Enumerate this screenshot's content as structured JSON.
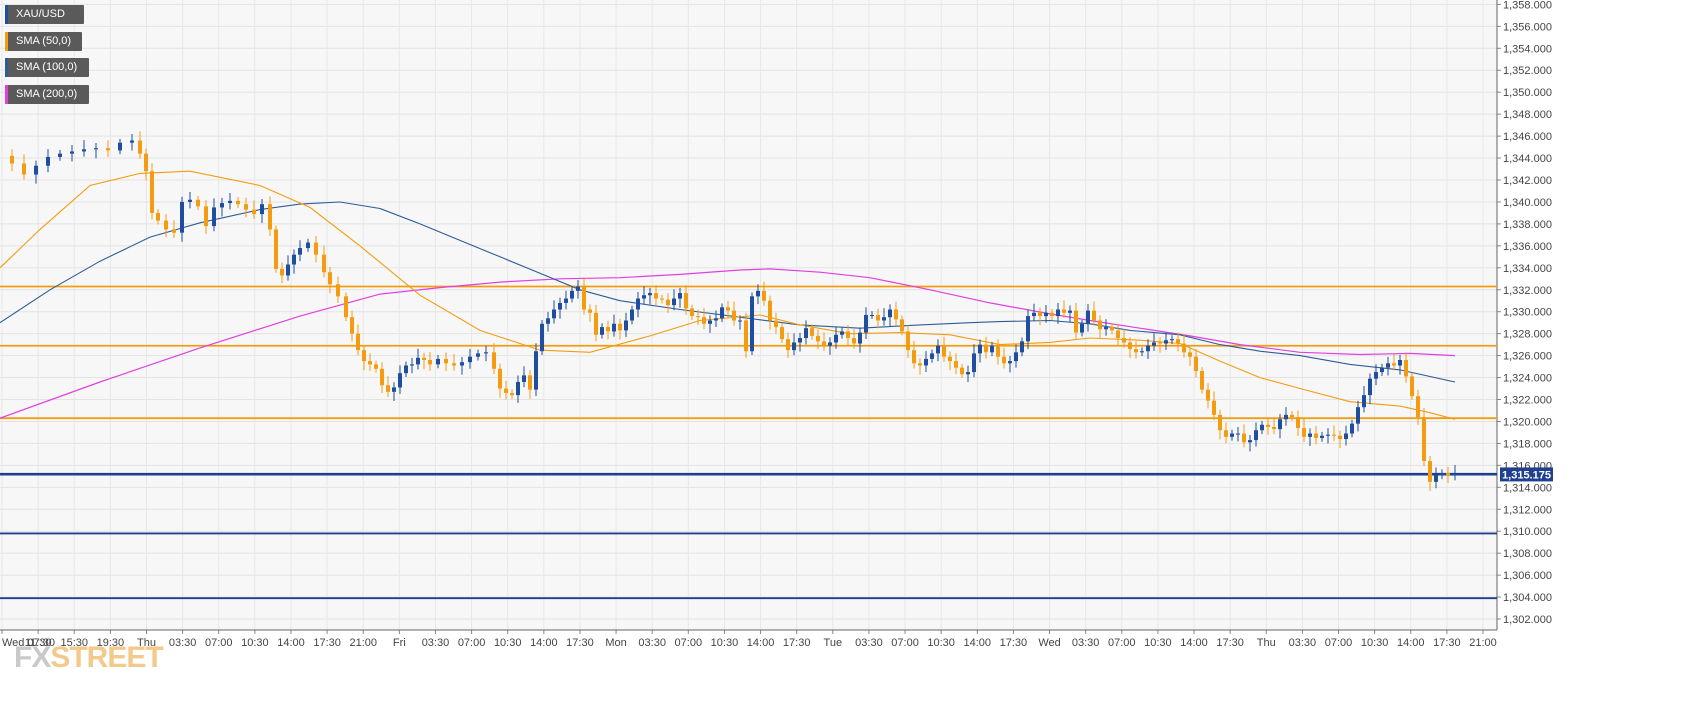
{
  "legend": [
    {
      "label": "XAU/USD",
      "color": "#1f4e9e"
    },
    {
      "label": "SMA (50,0)",
      "color": "#f39c12"
    },
    {
      "label": "SMA (100,0)",
      "color": "#2e5c9a"
    },
    {
      "label": "SMA (200,0)",
      "color": "#e040e0"
    }
  ],
  "logo": {
    "part1": "FX",
    "part2": "STREET"
  },
  "price_badge": "1,315.175",
  "chart_data": {
    "type": "candlestick",
    "symbol": "XAU/USD",
    "ylim": [
      1301,
      1358.4
    ],
    "grid": true,
    "y_ticks": [
      "1,302.000",
      "1,304.000",
      "1,306.000",
      "1,308.000",
      "1,310.000",
      "1,312.000",
      "1,314.000",
      "1,316.000",
      "1,318.000",
      "1,320.000",
      "1,322.000",
      "1,324.000",
      "1,326.000",
      "1,328.000",
      "1,330.000",
      "1,332.000",
      "1,334.000",
      "1,336.000",
      "1,338.000",
      "1,340.000",
      "1,342.000",
      "1,344.000",
      "1,346.000",
      "1,348.000",
      "1,350.000",
      "1,352.000",
      "1,354.000",
      "1,356.000",
      "1,358.000"
    ],
    "x_ticks": [
      "Wed 07:30",
      "11:30",
      "15:30",
      "19:30",
      "Thu",
      "03:30",
      "07:00",
      "10:30",
      "14:00",
      "17:30",
      "21:00",
      "Fri",
      "03:30",
      "07:00",
      "10:30",
      "14:00",
      "17:30",
      "Mon",
      "03:30",
      "07:00",
      "10:30",
      "14:00",
      "17:30",
      "Tue",
      "03:30",
      "07:00",
      "10:30",
      "14:00",
      "17:30",
      "Wed",
      "03:30",
      "07:00",
      "10:30",
      "14:00",
      "17:30",
      "Thu",
      "03:30",
      "07:00",
      "10:30",
      "14:00",
      "17:30",
      "21:00"
    ],
    "horizontal_levels": [
      {
        "price": 1332.3,
        "color": "#f39c12"
      },
      {
        "price": 1326.9,
        "color": "#f39c12"
      },
      {
        "price": 1320.3,
        "color": "#f39c12"
      },
      {
        "price": 1315.2,
        "color": "#1f3f8f"
      },
      {
        "price": 1309.8,
        "color": "#1f3f8f"
      },
      {
        "price": 1303.9,
        "color": "#1f3f8f"
      }
    ],
    "sma_50": [
      [
        0,
        1334
      ],
      [
        40,
        1337.5
      ],
      [
        90,
        1341.5
      ],
      [
        140,
        1342.6
      ],
      [
        190,
        1342.8
      ],
      [
        260,
        1341.5
      ],
      [
        310,
        1339.5
      ],
      [
        360,
        1336
      ],
      [
        420,
        1331.5
      ],
      [
        480,
        1328.3
      ],
      [
        540,
        1326.5
      ],
      [
        590,
        1326.3
      ],
      [
        650,
        1327.8
      ],
      [
        700,
        1329.2
      ],
      [
        760,
        1329.7
      ],
      [
        800,
        1328.8
      ],
      [
        850,
        1328
      ],
      [
        900,
        1328.1
      ],
      [
        950,
        1327.9
      ],
      [
        1000,
        1327
      ],
      [
        1050,
        1327.2
      ],
      [
        1090,
        1327.6
      ],
      [
        1140,
        1327.4
      ],
      [
        1180,
        1327.1
      ],
      [
        1220,
        1325.5
      ],
      [
        1260,
        1324
      ],
      [
        1300,
        1323
      ],
      [
        1350,
        1321.8
      ],
      [
        1400,
        1321.4
      ],
      [
        1430,
        1320.8
      ],
      [
        1455,
        1320.2
      ]
    ],
    "sma_100": [
      [
        0,
        1329
      ],
      [
        50,
        1332
      ],
      [
        100,
        1334.6
      ],
      [
        150,
        1336.8
      ],
      [
        200,
        1338.1
      ],
      [
        260,
        1339.3
      ],
      [
        300,
        1339.8
      ],
      [
        340,
        1340
      ],
      [
        380,
        1339.4
      ],
      [
        420,
        1338
      ],
      [
        460,
        1336.5
      ],
      [
        500,
        1335
      ],
      [
        540,
        1333.5
      ],
      [
        580,
        1332
      ],
      [
        620,
        1331
      ],
      [
        680,
        1330.2
      ],
      [
        740,
        1329.5
      ],
      [
        800,
        1328.8
      ],
      [
        860,
        1328.5
      ],
      [
        920,
        1328.8
      ],
      [
        970,
        1329
      ],
      [
        1000,
        1329.1
      ],
      [
        1050,
        1329.2
      ],
      [
        1090,
        1328.9
      ],
      [
        1130,
        1328.3
      ],
      [
        1180,
        1327.9
      ],
      [
        1220,
        1327
      ],
      [
        1260,
        1326.4
      ],
      [
        1300,
        1326
      ],
      [
        1350,
        1325.2
      ],
      [
        1400,
        1324.7
      ],
      [
        1455,
        1323.6
      ]
    ],
    "sma_200": [
      [
        0,
        1320.3
      ],
      [
        100,
        1323.6
      ],
      [
        200,
        1326.7
      ],
      [
        300,
        1329.6
      ],
      [
        380,
        1331.6
      ],
      [
        440,
        1332.2
      ],
      [
        500,
        1332.7
      ],
      [
        560,
        1333
      ],
      [
        620,
        1333.1
      ],
      [
        680,
        1333.4
      ],
      [
        740,
        1333.8
      ],
      [
        770,
        1333.9
      ],
      [
        820,
        1333.6
      ],
      [
        870,
        1333.1
      ],
      [
        930,
        1332
      ],
      [
        990,
        1330.8
      ],
      [
        1050,
        1329.8
      ],
      [
        1090,
        1329.2
      ],
      [
        1140,
        1328.5
      ],
      [
        1190,
        1327.8
      ],
      [
        1240,
        1327
      ],
      [
        1300,
        1326.3
      ],
      [
        1360,
        1326.1
      ],
      [
        1410,
        1326.2
      ],
      [
        1455,
        1326
      ]
    ],
    "price_path": [
      [
        0,
        1344.2
      ],
      [
        12,
        1343.5
      ],
      [
        24,
        1342.5
      ],
      [
        36,
        1343.3
      ],
      [
        48,
        1344.1
      ],
      [
        60,
        1344.4
      ],
      [
        72,
        1344.6
      ],
      [
        84,
        1344.8
      ],
      [
        96,
        1344.9
      ],
      [
        108,
        1344.7
      ],
      [
        120,
        1345.4
      ],
      [
        132,
        1345.6
      ],
      [
        140,
        1344.4
      ],
      [
        146,
        1342.8
      ],
      [
        152,
        1339
      ],
      [
        158,
        1338.3
      ],
      [
        166,
        1337.5
      ],
      [
        174,
        1337.2
      ],
      [
        182,
        1340
      ],
      [
        190,
        1340.2
      ],
      [
        198,
        1339.6
      ],
      [
        206,
        1337.8
      ],
      [
        214,
        1339.5
      ],
      [
        222,
        1339.9
      ],
      [
        230,
        1340.1
      ],
      [
        238,
        1339.8
      ],
      [
        246,
        1339.3
      ],
      [
        254,
        1338.9
      ],
      [
        262,
        1339.8
      ],
      [
        270,
        1337.5
      ],
      [
        276,
        1333.9
      ],
      [
        282,
        1333.3
      ],
      [
        288,
        1334.3
      ],
      [
        294,
        1335.2
      ],
      [
        300,
        1335.8
      ],
      [
        308,
        1336.3
      ],
      [
        316,
        1335.2
      ],
      [
        324,
        1333.6
      ],
      [
        330,
        1332.5
      ],
      [
        338,
        1331.4
      ],
      [
        346,
        1329.5
      ],
      [
        352,
        1328
      ],
      [
        358,
        1326.5
      ],
      [
        364,
        1325.5
      ],
      [
        370,
        1325.2
      ],
      [
        376,
        1324.8
      ],
      [
        382,
        1323.3
      ],
      [
        388,
        1322.7
      ],
      [
        394,
        1323.1
      ],
      [
        400,
        1324.4
      ],
      [
        406,
        1325.1
      ],
      [
        412,
        1325.2
      ],
      [
        418,
        1325.8
      ],
      [
        424,
        1325.6
      ],
      [
        430,
        1325.2
      ],
      [
        438,
        1325.7
      ],
      [
        446,
        1325.3
      ],
      [
        454,
        1325.1
      ],
      [
        462,
        1325.4
      ],
      [
        470,
        1325.9
      ],
      [
        478,
        1326.2
      ],
      [
        486,
        1326.3
      ],
      [
        494,
        1324.8
      ],
      [
        500,
        1323
      ],
      [
        506,
        1322.6
      ],
      [
        512,
        1322.4
      ],
      [
        518,
        1323.6
      ],
      [
        524,
        1324.2
      ],
      [
        530,
        1322.9
      ],
      [
        536,
        1326.4
      ],
      [
        542,
        1328.9
      ],
      [
        548,
        1329.4
      ],
      [
        554,
        1330.2
      ],
      [
        560,
        1330.8
      ],
      [
        566,
        1331.2
      ],
      [
        572,
        1331.9
      ],
      [
        578,
        1332.3
      ],
      [
        584,
        1330.2
      ],
      [
        590,
        1329.9
      ],
      [
        596,
        1327.9
      ],
      [
        602,
        1328.6
      ],
      [
        608,
        1328.2
      ],
      [
        614,
        1328.9
      ],
      [
        620,
        1328.3
      ],
      [
        626,
        1329.2
      ],
      [
        632,
        1330.2
      ],
      [
        638,
        1331.2
      ],
      [
        644,
        1331.5
      ],
      [
        650,
        1331.7
      ],
      [
        656,
        1331.2
      ],
      [
        662,
        1331.1
      ],
      [
        668,
        1330.6
      ],
      [
        674,
        1331.2
      ],
      [
        680,
        1331.7
      ],
      [
        686,
        1330.3
      ],
      [
        692,
        1329.6
      ],
      [
        698,
        1329.5
      ],
      [
        704,
        1328.9
      ],
      [
        710,
        1329.2
      ],
      [
        716,
        1329.4
      ],
      [
        722,
        1330.4
      ],
      [
        728,
        1330.1
      ],
      [
        734,
        1329.2
      ],
      [
        740,
        1329.2
      ],
      [
        746,
        1326.4
      ],
      [
        752,
        1331.4
      ],
      [
        758,
        1331.9
      ],
      [
        764,
        1331
      ],
      [
        770,
        1329.2
      ],
      [
        776,
        1328.6
      ],
      [
        782,
        1327.5
      ],
      [
        788,
        1326.5
      ],
      [
        794,
        1327.2
      ],
      [
        800,
        1327.6
      ],
      [
        806,
        1328.5
      ],
      [
        812,
        1327.8
      ],
      [
        818,
        1327.3
      ],
      [
        824,
        1326.9
      ],
      [
        830,
        1327.2
      ],
      [
        836,
        1327.9
      ],
      [
        842,
        1328.2
      ],
      [
        848,
        1327.6
      ],
      [
        854,
        1327.1
      ],
      [
        860,
        1328.1
      ],
      [
        866,
        1329.7
      ],
      [
        872,
        1329.7
      ],
      [
        878,
        1329.2
      ],
      [
        884,
        1329.5
      ],
      [
        890,
        1330.2
      ],
      [
        896,
        1329.3
      ],
      [
        902,
        1328.2
      ],
      [
        908,
        1326.5
      ],
      [
        914,
        1325.3
      ],
      [
        920,
        1325.1
      ],
      [
        926,
        1325.7
      ],
      [
        932,
        1326.2
      ],
      [
        938,
        1326.9
      ],
      [
        944,
        1325.9
      ],
      [
        950,
        1325.5
      ],
      [
        956,
        1324.9
      ],
      [
        962,
        1324.3
      ],
      [
        968,
        1324.5
      ],
      [
        974,
        1326.2
      ],
      [
        980,
        1327
      ],
      [
        986,
        1326.3
      ],
      [
        992,
        1326.9
      ],
      [
        998,
        1325.9
      ],
      [
        1004,
        1325.3
      ],
      [
        1010,
        1325.5
      ],
      [
        1016,
        1326.3
      ],
      [
        1022,
        1327.3
      ],
      [
        1028,
        1329.6
      ],
      [
        1034,
        1329.9
      ],
      [
        1040,
        1329.6
      ],
      [
        1046,
        1329.9
      ],
      [
        1052,
        1329.6
      ],
      [
        1058,
        1330.2
      ],
      [
        1064,
        1329.9
      ],
      [
        1070,
        1330.1
      ],
      [
        1076,
        1328.1
      ],
      [
        1082,
        1328.9
      ],
      [
        1088,
        1330.1
      ],
      [
        1094,
        1329.2
      ],
      [
        1100,
        1328.4
      ],
      [
        1106,
        1328.6
      ],
      [
        1112,
        1328.3
      ],
      [
        1118,
        1327.6
      ],
      [
        1124,
        1327.2
      ],
      [
        1130,
        1326.6
      ],
      [
        1136,
        1326.3
      ],
      [
        1142,
        1326.4
      ],
      [
        1148,
        1326.9
      ],
      [
        1154,
        1327.2
      ],
      [
        1160,
        1327.1
      ],
      [
        1166,
        1327.4
      ],
      [
        1172,
        1327.5
      ],
      [
        1178,
        1327.1
      ],
      [
        1184,
        1326.3
      ],
      [
        1190,
        1325.9
      ],
      [
        1196,
        1324.6
      ],
      [
        1202,
        1322.9
      ],
      [
        1208,
        1321.9
      ],
      [
        1214,
        1320.6
      ],
      [
        1220,
        1319.2
      ],
      [
        1226,
        1318.6
      ],
      [
        1232,
        1318.9
      ],
      [
        1238,
        1318.9
      ],
      [
        1244,
        1318.1
      ],
      [
        1250,
        1318.3
      ],
      [
        1256,
        1319.2
      ],
      [
        1262,
        1319.7
      ],
      [
        1268,
        1319.5
      ],
      [
        1274,
        1319.3
      ],
      [
        1280,
        1320.2
      ],
      [
        1286,
        1320.6
      ],
      [
        1292,
        1320.4
      ],
      [
        1298,
        1319.4
      ],
      [
        1304,
        1318.6
      ],
      [
        1310,
        1318.9
      ],
      [
        1316,
        1318.5
      ],
      [
        1322,
        1318.7
      ],
      [
        1328,
        1318.8
      ],
      [
        1334,
        1318.7
      ],
      [
        1340,
        1318.4
      ],
      [
        1346,
        1318.9
      ],
      [
        1352,
        1319.8
      ],
      [
        1358,
        1321.3
      ],
      [
        1364,
        1322.4
      ],
      [
        1370,
        1323.9
      ],
      [
        1376,
        1324.5
      ],
      [
        1382,
        1324.9
      ],
      [
        1388,
        1325.3
      ],
      [
        1394,
        1325.1
      ],
      [
        1400,
        1325.6
      ],
      [
        1406,
        1324.1
      ],
      [
        1412,
        1322.3
      ],
      [
        1418,
        1320.4
      ],
      [
        1424,
        1316.4
      ],
      [
        1430,
        1314.5
      ],
      [
        1436,
        1315.1
      ],
      [
        1442,
        1315.3
      ],
      [
        1448,
        1315.1
      ],
      [
        1455,
        1315.2
      ]
    ]
  }
}
